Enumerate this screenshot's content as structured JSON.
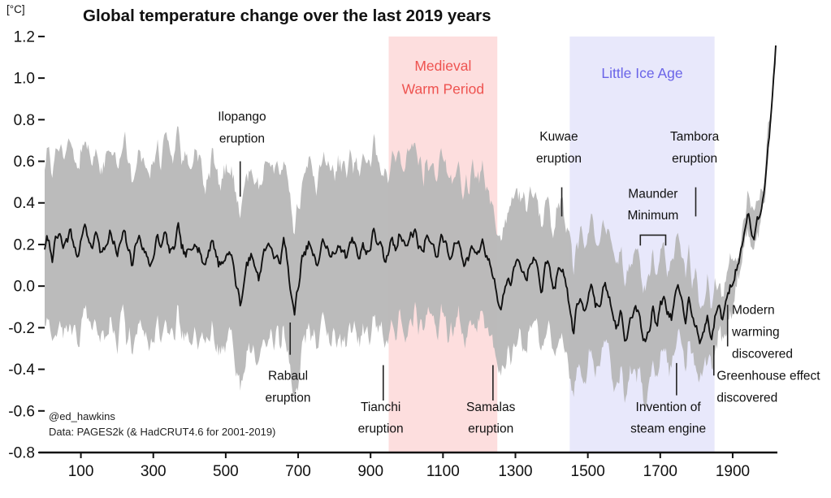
{
  "chart_data": {
    "type": "line",
    "title": "Global temperature change over the last 2019 years",
    "unit_label": "[°C]",
    "credits": [
      "@ed_hawkins",
      "Data: PAGES2k (& HadCRUT4.6 for 2001-2019)"
    ],
    "x_range": [
      0,
      2019
    ],
    "y_range": [
      -0.8,
      1.227
    ],
    "x_ticks": [
      100,
      300,
      500,
      700,
      900,
      1100,
      1300,
      1500,
      1700,
      1900
    ],
    "y_ticks": [
      -0.8,
      -0.6,
      -0.4,
      -0.2,
      0.0,
      0.2,
      0.4,
      0.6,
      0.8,
      1.0,
      1.2
    ],
    "y_tick_labels": [
      "-0.8",
      "-0.6",
      "-0.4",
      "-0.2",
      "0.0",
      "0.2",
      "0.4",
      "0.6",
      "0.8",
      "1.0",
      "1.2"
    ],
    "line_color": "#111111",
    "band_color": "#b7b7b7",
    "band_opacity": 0.95,
    "axis_color": "#111111",
    "text_color": "#111111",
    "regions": [
      {
        "name": "medieval-warm-period",
        "label_lines": [
          "Medieval",
          "Warm Period"
        ],
        "start": 950,
        "end": 1250,
        "fill": "rgba(246,103,103,0.22)",
        "label_color": "#ee5350",
        "label_x": 1100,
        "label_y": [
          1.035,
          0.925
        ]
      },
      {
        "name": "little-ice-age",
        "label_lines": [
          "Little Ice Age"
        ],
        "start": 1450,
        "end": 1850,
        "fill": "rgba(112,112,233,0.16)",
        "label_color": "#6a64e8",
        "label_x": 1650,
        "label_y": [
          1.0
        ]
      }
    ],
    "median_start_year": 0,
    "median_step_years": 10,
    "median_decadal": [
      0.18,
      0.22,
      0.15,
      0.2,
      0.25,
      0.17,
      0.22,
      0.27,
      0.2,
      0.16,
      0.22,
      0.29,
      0.24,
      0.18,
      0.25,
      0.2,
      0.15,
      0.22,
      0.27,
      0.2,
      0.14,
      0.2,
      0.25,
      0.18,
      0.12,
      0.18,
      0.24,
      0.2,
      0.15,
      0.1,
      0.16,
      0.22,
      0.18,
      0.25,
      0.2,
      0.14,
      0.2,
      0.26,
      0.18,
      0.12,
      0.18,
      0.24,
      0.2,
      0.15,
      0.1,
      0.16,
      0.22,
      0.18,
      0.12,
      0.1,
      0.15,
      0.18,
      0.1,
      0.0,
      -0.08,
      0.02,
      0.1,
      0.15,
      0.1,
      0.06,
      0.12,
      0.18,
      0.22,
      0.16,
      0.1,
      0.15,
      0.2,
      0.12,
      -0.02,
      -0.15,
      0.0,
      0.1,
      0.16,
      0.21,
      0.14,
      0.1,
      0.16,
      0.22,
      0.18,
      0.12,
      0.16,
      0.22,
      0.18,
      0.12,
      0.18,
      0.24,
      0.2,
      0.14,
      0.2,
      0.16,
      0.2,
      0.26,
      0.22,
      0.16,
      0.1,
      0.17,
      0.23,
      0.2,
      0.26,
      0.22,
      0.18,
      0.24,
      0.28,
      0.22,
      0.16,
      0.22,
      0.26,
      0.2,
      0.14,
      0.2,
      0.24,
      0.18,
      0.12,
      0.18,
      0.22,
      0.16,
      0.1,
      0.16,
      0.2,
      0.14,
      0.18,
      0.22,
      0.16,
      0.1,
      0.05,
      -0.05,
      -0.12,
      0.0,
      0.08,
      0.04,
      0.1,
      0.14,
      0.08,
      0.02,
      0.08,
      0.12,
      0.06,
      0.0,
      0.06,
      0.1,
      0.05,
      -0.02,
      0.04,
      0.08,
      0.02,
      -0.12,
      -0.22,
      -0.12,
      -0.05,
      -0.1,
      -0.04,
      0.02,
      -0.06,
      -0.12,
      -0.05,
      0.0,
      -0.08,
      -0.14,
      -0.2,
      -0.12,
      -0.2,
      -0.27,
      -0.16,
      -0.08,
      -0.14,
      -0.22,
      -0.28,
      -0.2,
      -0.12,
      -0.18,
      -0.1,
      -0.05,
      -0.1,
      -0.16,
      -0.08,
      -0.02,
      -0.08,
      -0.14,
      -0.06,
      -0.12,
      -0.18,
      -0.3,
      -0.22,
      -0.15,
      -0.25,
      -0.17,
      -0.1,
      -0.15,
      -0.08,
      -0.02,
      0.02,
      0.08,
      0.15,
      0.26,
      0.36,
      0.3,
      0.26,
      0.31,
      0.4,
      0.55,
      0.72,
      0.88
    ],
    "median_final": [
      2019,
      1.17
    ],
    "band_halfwidth_anchors": [
      [
        0,
        0.42
      ],
      [
        600,
        0.42
      ],
      [
        1000,
        0.4
      ],
      [
        1250,
        0.35
      ],
      [
        1450,
        0.31
      ],
      [
        1600,
        0.28
      ],
      [
        1700,
        0.26
      ],
      [
        1800,
        0.21
      ],
      [
        1850,
        0.14
      ],
      [
        1900,
        0.09
      ],
      [
        1940,
        0.06
      ],
      [
        2019,
        0.05
      ]
    ],
    "render_noise": {
      "seed": 7,
      "step_years": 3,
      "median_amp": 0.06,
      "band_amp": 0.1
    },
    "annotations": [
      {
        "name": "ilopango-eruption",
        "lines": [
          "Ilopango",
          "eruption"
        ],
        "text_x": 545,
        "text_ys": [
          0.795,
          0.69
        ],
        "align": "middle",
        "marker": {
          "x": 540,
          "y1": 0.6,
          "y2": 0.43
        }
      },
      {
        "name": "rabaul-eruption",
        "lines": [
          "Rabaul",
          "eruption"
        ],
        "text_x": 672,
        "text_ys": [
          -0.45,
          -0.555
        ],
        "align": "middle",
        "marker": {
          "x": 678,
          "y1": -0.175,
          "y2": -0.33
        }
      },
      {
        "name": "tianchi-eruption",
        "lines": [
          "Tianchi",
          "eruption"
        ],
        "text_x": 928,
        "text_ys": [
          -0.6,
          -0.705
        ],
        "align": "middle",
        "marker": {
          "x": 935,
          "y1": -0.38,
          "y2": -0.55
        }
      },
      {
        "name": "samalas-eruption",
        "lines": [
          "Samalas",
          "eruption"
        ],
        "text_x": 1232,
        "text_ys": [
          -0.6,
          -0.705
        ],
        "align": "middle",
        "marker": {
          "x": 1238,
          "y1": -0.38,
          "y2": -0.55
        }
      },
      {
        "name": "kuwae-eruption",
        "lines": [
          "Kuwae",
          "eruption"
        ],
        "text_x": 1420,
        "text_ys": [
          0.7,
          0.595
        ],
        "align": "middle",
        "marker": {
          "x": 1428,
          "y1": 0.475,
          "y2": 0.335
        }
      },
      {
        "name": "maunder-minimum",
        "lines": [
          "Maunder",
          "Minimum"
        ],
        "text_x": 1680,
        "text_ys": [
          0.425,
          0.32
        ],
        "align": "middle",
        "bracket": {
          "x1": 1645,
          "x2": 1715,
          "y_top": 0.245,
          "y_drop": 0.05
        }
      },
      {
        "name": "tambora-eruption",
        "lines": [
          "Tambora",
          "eruption"
        ],
        "text_x": 1795,
        "text_ys": [
          0.7,
          0.595
        ],
        "align": "middle",
        "marker": {
          "x": 1798,
          "y1": 0.475,
          "y2": 0.335
        }
      },
      {
        "name": "invention-of-steam-engine",
        "lines": [
          "Invention of",
          "steam engine"
        ],
        "text_x": 1722,
        "text_ys": [
          -0.6,
          -0.705
        ],
        "align": "middle",
        "marker": {
          "x": 1745,
          "y1": -0.37,
          "y2": -0.525
        }
      },
      {
        "name": "greenhouse-effect-discovered",
        "lines": [
          "Greenhouse effect",
          "discovered"
        ],
        "text_x": 1856,
        "text_ys": [
          -0.45,
          -0.555
        ],
        "align": "start",
        "marker": {
          "x": 1848,
          "y1": -0.285,
          "y2": -0.43
        }
      },
      {
        "name": "modern-warming-discovered",
        "lines": [
          "Modern",
          "warming",
          "discovered"
        ],
        "text_x": 1898,
        "text_ys": [
          -0.135,
          -0.24,
          -0.345
        ],
        "align": "start",
        "marker": {
          "x": 1886,
          "y1": -0.09,
          "y2": -0.29
        }
      }
    ]
  }
}
